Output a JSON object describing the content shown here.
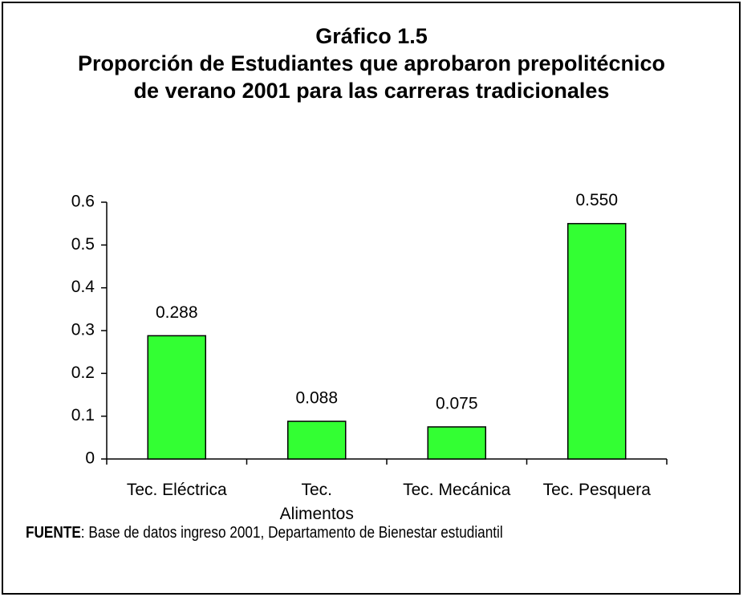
{
  "chart_data": {
    "type": "bar",
    "title": "Gráfico 1.5",
    "subtitle": "Proporción de Estudiantes que aprobaron prepolitécnico\nde verano 2001 para las carreras tradicionales",
    "categories": [
      "Tec. Eléctrica",
      "Tec.\nAlimentos",
      "Tec. Mecánica",
      "Tec. Pesquera"
    ],
    "values": [
      0.288,
      0.088,
      0.075,
      0.55
    ],
    "value_labels": [
      "0.288",
      "0.088",
      "0.075",
      "0.550"
    ],
    "color": "#33ff33",
    "ylim": [
      0,
      0.6
    ],
    "yticks": [
      0,
      0.1,
      0.2,
      0.3,
      0.4,
      0.5,
      0.6
    ],
    "grid": false
  },
  "source": {
    "label": "FUENTE",
    "text": ": Base de datos ingreso 2001, Departamento de Bienestar estudiantil"
  }
}
